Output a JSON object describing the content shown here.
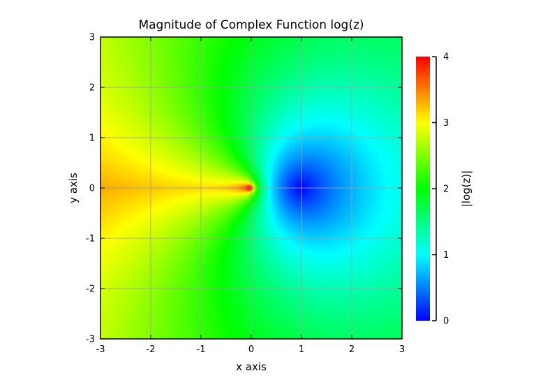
{
  "chart_data": {
    "type": "heatmap",
    "title": "Magnitude of Complex Function log(z)",
    "xlabel": "x axis",
    "ylabel": "y axis",
    "xlim": [
      -3,
      3
    ],
    "ylim": [
      -3,
      3
    ],
    "x_ticks": [
      -3,
      -2,
      -1,
      0,
      1,
      2,
      3
    ],
    "y_ticks": [
      -3,
      -2,
      -1,
      0,
      1,
      2,
      3
    ],
    "x_tick_labels": [
      "-3",
      "-2",
      "-1",
      "0",
      "1",
      "2",
      "3"
    ],
    "y_tick_labels": [
      "-3",
      "-2",
      "-1",
      "0",
      "1",
      "2",
      "3"
    ],
    "grid": true,
    "function": "|log(z)|",
    "colorbar": {
      "label": "|log(z)|",
      "range": [
        0,
        4
      ],
      "ticks": [
        0,
        1,
        2,
        3,
        4
      ],
      "tick_labels": [
        "0",
        "1",
        "2",
        "3",
        "4"
      ],
      "placement": "right",
      "colormap": [
        "#0000ff",
        "#00ffff",
        "#00ff00",
        "#ffff00",
        "#ff0000"
      ]
    }
  }
}
